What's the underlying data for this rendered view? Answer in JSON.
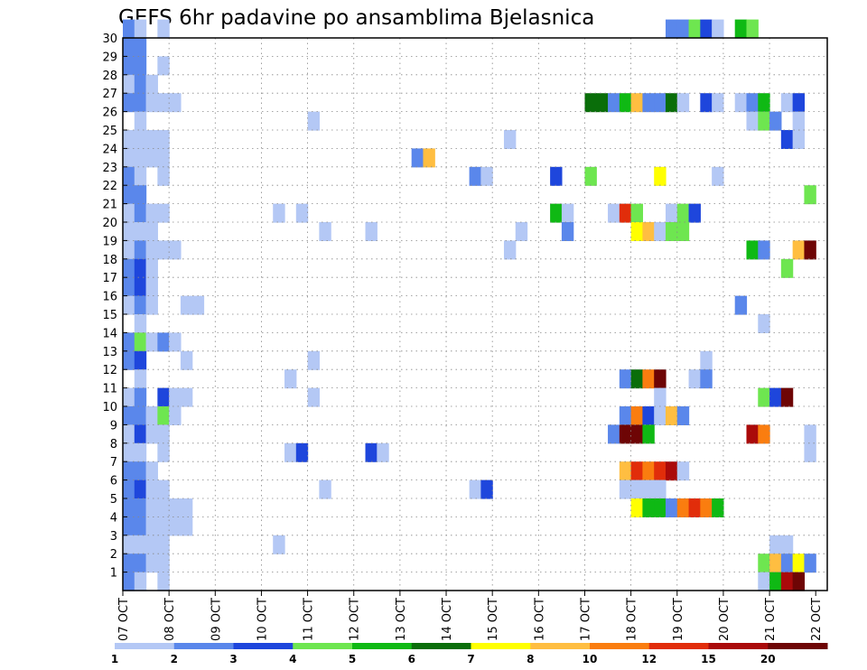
{
  "chart_data": {
    "type": "heatmap",
    "title": "GEFS 6hr padavine po ansamblima Bjelasnica",
    "xlabel": "",
    "ylabel": "",
    "x_tick_labels": [
      "07 OCT",
      "08 OCT",
      "09 OCT",
      "10 OCT",
      "11 OCT",
      "12 OCT",
      "13 OCT",
      "14 OCT",
      "15 OCT",
      "16 OCT",
      "17 OCT",
      "18 OCT",
      "19 OCT",
      "20 OCT",
      "21 OCT",
      "22 OCT"
    ],
    "x_steps_per_label": 4,
    "x_steps_total": 61,
    "y_members": [
      1,
      2,
      3,
      4,
      5,
      6,
      7,
      8,
      9,
      10,
      11,
      12,
      13,
      14,
      15,
      16,
      17,
      18,
      19,
      20,
      21,
      22,
      23,
      24,
      25,
      26,
      27,
      28,
      29,
      30
    ],
    "grid": true,
    "colorbar": {
      "thresholds": [
        1,
        2,
        3,
        4,
        5,
        6,
        7,
        8,
        10,
        12,
        15,
        20
      ],
      "tick_labels": [
        "1",
        "2",
        "3",
        "4",
        "5",
        "6",
        "7",
        "8",
        "10",
        "12",
        "15",
        "20"
      ],
      "colors": [
        "#b4c8f5",
        "#5a87eb",
        "#1e46dc",
        "#6ee650",
        "#0fb914",
        "#0a6e0a",
        "#ffff00",
        "#ffbe41",
        "#fa7d0f",
        "#e12d0a",
        "#aa0a0a",
        "#6e0505"
      ]
    },
    "cells": [
      [
        30,
        0,
        1
      ],
      [
        30,
        1,
        0
      ],
      [
        30,
        3,
        0
      ],
      [
        30,
        47,
        1
      ],
      [
        30,
        48,
        1
      ],
      [
        30,
        49,
        3
      ],
      [
        30,
        50,
        2
      ],
      [
        30,
        51,
        0
      ],
      [
        30,
        53,
        4
      ],
      [
        30,
        54,
        3
      ],
      [
        29,
        0,
        1
      ],
      [
        29,
        1,
        1
      ],
      [
        28,
        0,
        1
      ],
      [
        28,
        1,
        1
      ],
      [
        28,
        3,
        0
      ],
      [
        27,
        0,
        0
      ],
      [
        27,
        1,
        1
      ],
      [
        27,
        2,
        0
      ],
      [
        26,
        0,
        1
      ],
      [
        26,
        1,
        1
      ],
      [
        26,
        2,
        0
      ],
      [
        26,
        3,
        0
      ],
      [
        26,
        4,
        0
      ],
      [
        26,
        40,
        5
      ],
      [
        26,
        41,
        5
      ],
      [
        26,
        42,
        1
      ],
      [
        26,
        43,
        4
      ],
      [
        26,
        44,
        7
      ],
      [
        26,
        45,
        1
      ],
      [
        26,
        46,
        1
      ],
      [
        26,
        47,
        5
      ],
      [
        26,
        48,
        0
      ],
      [
        26,
        50,
        2
      ],
      [
        26,
        51,
        0
      ],
      [
        26,
        53,
        0
      ],
      [
        26,
        54,
        1
      ],
      [
        26,
        55,
        4
      ],
      [
        26,
        57,
        0
      ],
      [
        26,
        58,
        2
      ],
      [
        25,
        1,
        0
      ],
      [
        25,
        16,
        0
      ],
      [
        25,
        54,
        0
      ],
      [
        25,
        55,
        3
      ],
      [
        25,
        56,
        1
      ],
      [
        25,
        58,
        0
      ],
      [
        24,
        0,
        0
      ],
      [
        24,
        1,
        0
      ],
      [
        24,
        2,
        0
      ],
      [
        24,
        3,
        0
      ],
      [
        24,
        33,
        0
      ],
      [
        24,
        57,
        2
      ],
      [
        24,
        58,
        0
      ],
      [
        23,
        0,
        0
      ],
      [
        23,
        1,
        0
      ],
      [
        23,
        2,
        0
      ],
      [
        23,
        3,
        0
      ],
      [
        23,
        25,
        1
      ],
      [
        23,
        26,
        7
      ],
      [
        22,
        0,
        1
      ],
      [
        22,
        1,
        0
      ],
      [
        22,
        3,
        0
      ],
      [
        22,
        30,
        1
      ],
      [
        22,
        31,
        0
      ],
      [
        22,
        37,
        2
      ],
      [
        22,
        40,
        3
      ],
      [
        22,
        46,
        6
      ],
      [
        22,
        51,
        0
      ],
      [
        21,
        0,
        1
      ],
      [
        21,
        1,
        1
      ],
      [
        21,
        59,
        3
      ],
      [
        20,
        0,
        0
      ],
      [
        20,
        1,
        1
      ],
      [
        20,
        2,
        0
      ],
      [
        20,
        3,
        0
      ],
      [
        20,
        13,
        0
      ],
      [
        20,
        15,
        0
      ],
      [
        20,
        37,
        4
      ],
      [
        20,
        38,
        0
      ],
      [
        20,
        42,
        0
      ],
      [
        20,
        43,
        9
      ],
      [
        20,
        44,
        3
      ],
      [
        20,
        47,
        0
      ],
      [
        20,
        48,
        3
      ],
      [
        20,
        49,
        2
      ],
      [
        19,
        0,
        0
      ],
      [
        19,
        1,
        0
      ],
      [
        19,
        2,
        0
      ],
      [
        19,
        17,
        0
      ],
      [
        19,
        21,
        0
      ],
      [
        19,
        34,
        0
      ],
      [
        19,
        38,
        1
      ],
      [
        19,
        44,
        6
      ],
      [
        19,
        45,
        7
      ],
      [
        19,
        46,
        0
      ],
      [
        19,
        47,
        3
      ],
      [
        19,
        48,
        3
      ],
      [
        18,
        0,
        0
      ],
      [
        18,
        1,
        1
      ],
      [
        18,
        2,
        0
      ],
      [
        18,
        3,
        0
      ],
      [
        18,
        4,
        0
      ],
      [
        18,
        33,
        0
      ],
      [
        18,
        54,
        4
      ],
      [
        18,
        55,
        1
      ],
      [
        18,
        58,
        7
      ],
      [
        18,
        59,
        11
      ],
      [
        17,
        0,
        1
      ],
      [
        17,
        1,
        2
      ],
      [
        17,
        2,
        0
      ],
      [
        17,
        57,
        3
      ],
      [
        16,
        0,
        1
      ],
      [
        16,
        1,
        2
      ],
      [
        16,
        2,
        0
      ],
      [
        15,
        0,
        0
      ],
      [
        15,
        1,
        1
      ],
      [
        15,
        2,
        0
      ],
      [
        15,
        5,
        0
      ],
      [
        15,
        6,
        0
      ],
      [
        15,
        53,
        1
      ],
      [
        14,
        1,
        0
      ],
      [
        14,
        55,
        0
      ],
      [
        13,
        0,
        1
      ],
      [
        13,
        1,
        3
      ],
      [
        13,
        2,
        0
      ],
      [
        13,
        3,
        1
      ],
      [
        13,
        4,
        0
      ],
      [
        12,
        0,
        1
      ],
      [
        12,
        1,
        2
      ],
      [
        12,
        5,
        0
      ],
      [
        12,
        16,
        0
      ],
      [
        12,
        50,
        0
      ],
      [
        11,
        1,
        0
      ],
      [
        11,
        14,
        0
      ],
      [
        11,
        43,
        1
      ],
      [
        11,
        44,
        5
      ],
      [
        11,
        45,
        8
      ],
      [
        11,
        46,
        11
      ],
      [
        11,
        49,
        0
      ],
      [
        11,
        50,
        1
      ],
      [
        10,
        0,
        0
      ],
      [
        10,
        1,
        1
      ],
      [
        10,
        3,
        2
      ],
      [
        10,
        4,
        0
      ],
      [
        10,
        5,
        0
      ],
      [
        10,
        16,
        0
      ],
      [
        10,
        46,
        0
      ],
      [
        10,
        55,
        3
      ],
      [
        10,
        56,
        2
      ],
      [
        10,
        57,
        11
      ],
      [
        9,
        0,
        1
      ],
      [
        9,
        1,
        1
      ],
      [
        9,
        2,
        0
      ],
      [
        9,
        3,
        3
      ],
      [
        9,
        4,
        0
      ],
      [
        9,
        43,
        1
      ],
      [
        9,
        44,
        8
      ],
      [
        9,
        45,
        2
      ],
      [
        9,
        46,
        0
      ],
      [
        9,
        47,
        7
      ],
      [
        9,
        48,
        1
      ],
      [
        8,
        0,
        0
      ],
      [
        8,
        1,
        2
      ],
      [
        8,
        2,
        0
      ],
      [
        8,
        3,
        0
      ],
      [
        8,
        42,
        1
      ],
      [
        8,
        43,
        11
      ],
      [
        8,
        44,
        11
      ],
      [
        8,
        45,
        4
      ],
      [
        8,
        54,
        10
      ],
      [
        8,
        55,
        8
      ],
      [
        8,
        59,
        0
      ],
      [
        7,
        0,
        0
      ],
      [
        7,
        1,
        0
      ],
      [
        7,
        3,
        0
      ],
      [
        7,
        14,
        0
      ],
      [
        7,
        15,
        2
      ],
      [
        7,
        21,
        2
      ],
      [
        7,
        22,
        0
      ],
      [
        7,
        59,
        0
      ],
      [
        6,
        0,
        1
      ],
      [
        6,
        1,
        1
      ],
      [
        6,
        2,
        0
      ],
      [
        6,
        43,
        7
      ],
      [
        6,
        44,
        9
      ],
      [
        6,
        45,
        8
      ],
      [
        6,
        46,
        9
      ],
      [
        6,
        47,
        10
      ],
      [
        6,
        48,
        0
      ],
      [
        5,
        0,
        1
      ],
      [
        5,
        1,
        2
      ],
      [
        5,
        2,
        0
      ],
      [
        5,
        3,
        0
      ],
      [
        5,
        17,
        0
      ],
      [
        5,
        30,
        0
      ],
      [
        5,
        31,
        2
      ],
      [
        5,
        43,
        0
      ],
      [
        5,
        44,
        0
      ],
      [
        5,
        45,
        0
      ],
      [
        5,
        46,
        0
      ],
      [
        4,
        0,
        1
      ],
      [
        4,
        1,
        1
      ],
      [
        4,
        2,
        0
      ],
      [
        4,
        3,
        0
      ],
      [
        4,
        4,
        0
      ],
      [
        4,
        5,
        0
      ],
      [
        4,
        44,
        6
      ],
      [
        4,
        45,
        4
      ],
      [
        4,
        46,
        4
      ],
      [
        4,
        47,
        1
      ],
      [
        4,
        48,
        8
      ],
      [
        4,
        49,
        9
      ],
      [
        4,
        50,
        8
      ],
      [
        4,
        51,
        4
      ],
      [
        3,
        0,
        1
      ],
      [
        3,
        1,
        1
      ],
      [
        3,
        2,
        0
      ],
      [
        3,
        3,
        0
      ],
      [
        3,
        4,
        0
      ],
      [
        3,
        5,
        0
      ],
      [
        2,
        0,
        0
      ],
      [
        2,
        1,
        0
      ],
      [
        2,
        2,
        0
      ],
      [
        2,
        3,
        0
      ],
      [
        2,
        13,
        0
      ],
      [
        2,
        56,
        0
      ],
      [
        2,
        57,
        0
      ],
      [
        1,
        0,
        1
      ],
      [
        1,
        1,
        1
      ],
      [
        1,
        2,
        0
      ],
      [
        1,
        3,
        0
      ],
      [
        1,
        55,
        3
      ],
      [
        1,
        56,
        7
      ],
      [
        1,
        57,
        1
      ],
      [
        1,
        58,
        6
      ],
      [
        1,
        59,
        1
      ],
      [
        0,
        0,
        1
      ],
      [
        0,
        1,
        0
      ],
      [
        0,
        3,
        0
      ],
      [
        0,
        55,
        0
      ],
      [
        0,
        56,
        4
      ],
      [
        0,
        57,
        10
      ],
      [
        0,
        58,
        11
      ]
    ]
  }
}
